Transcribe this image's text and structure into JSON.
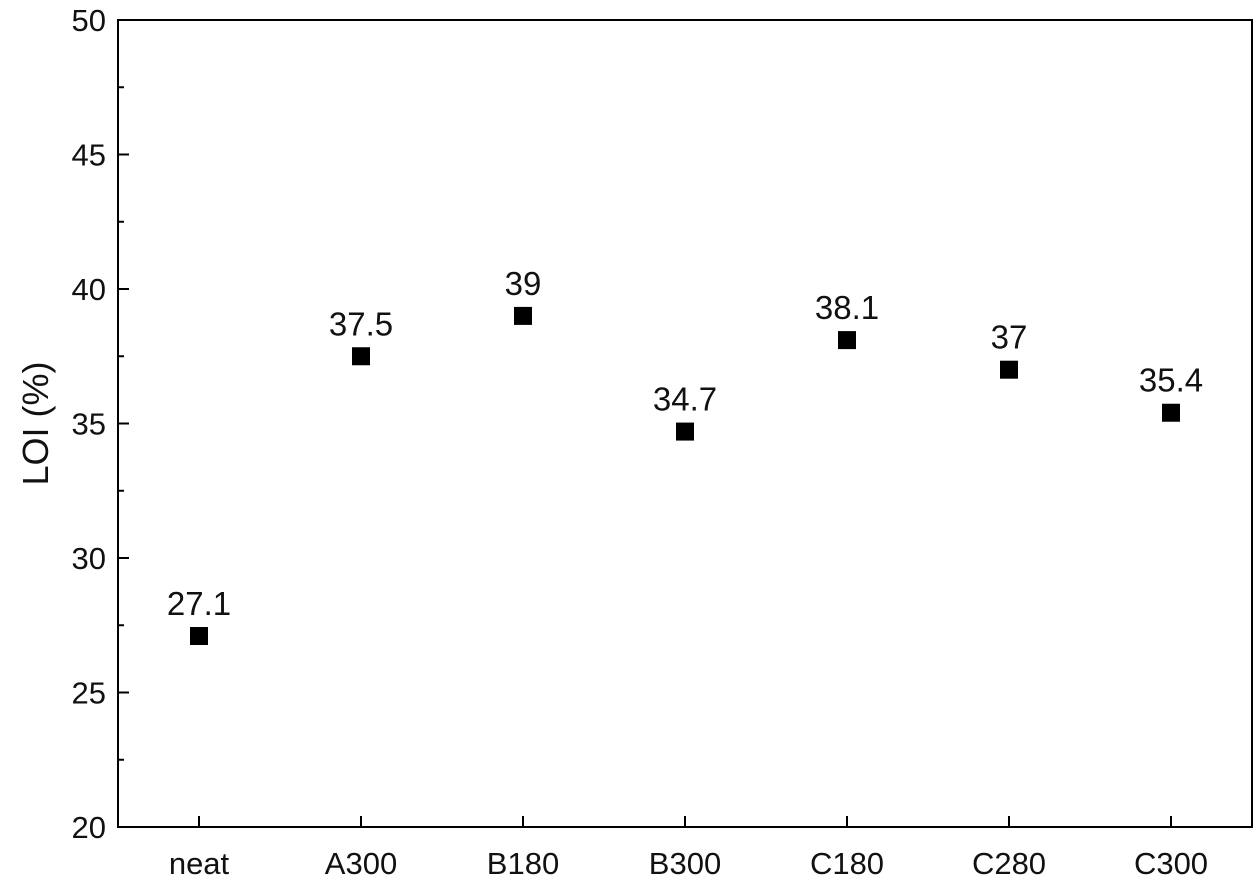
{
  "chart_data": {
    "type": "scatter",
    "title": "",
    "xlabel": "",
    "ylabel": "LOI (%)",
    "categories": [
      "neat",
      "A300",
      "B180",
      "B300",
      "C180",
      "C280",
      "C300"
    ],
    "values": [
      27.1,
      37.5,
      39,
      34.7,
      38.1,
      37,
      35.4
    ],
    "data_labels": [
      "27.1",
      "37.5",
      "39",
      "34.7",
      "38.1",
      "37",
      "35.4"
    ],
    "ylim": [
      20,
      50
    ],
    "yticks": [
      20,
      25,
      30,
      35,
      40,
      45,
      50
    ],
    "ytick_labels": [
      "20",
      "25",
      "30",
      "35",
      "40",
      "45",
      "50"
    ],
    "grid": false,
    "legend": "none",
    "marker": "square",
    "marker_color": "#000000"
  }
}
